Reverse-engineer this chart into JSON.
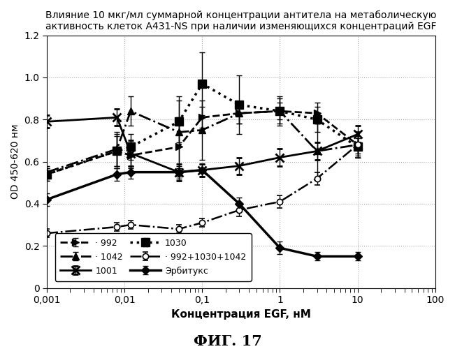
{
  "title_line1": "Влияние 10 мкг/мл суммарной концентрации антитела на метаболическую",
  "title_line2": "активность клеток A431-NS при наличии изменяющихся концентраций EGF",
  "xlabel": "Концентрация EGF, нМ",
  "ylabel": "OD 450-620 нм",
  "figcaption": "ФИГ. 17",
  "xlim": [
    0.001,
    100
  ],
  "ylim": [
    0,
    1.2
  ],
  "yticks": [
    0,
    0.2,
    0.4,
    0.6,
    0.8,
    1.0,
    1.2
  ],
  "xticks": [
    0.001,
    0.01,
    0.1,
    1,
    10,
    100
  ],
  "xtick_labels": [
    "0,001",
    "0,01",
    "0,1",
    "1",
    "10",
    "100"
  ],
  "series_992": {
    "x": [
      0.001,
      0.008,
      0.012,
      0.05,
      0.1,
      0.3,
      1.0,
      3.0,
      10.0
    ],
    "y": [
      0.54,
      0.65,
      0.63,
      0.67,
      0.81,
      0.83,
      0.84,
      0.83,
      0.68
    ],
    "yerr": [
      0.03,
      0.08,
      0.06,
      0.14,
      0.05,
      0.05,
      0.04,
      0.05,
      0.04
    ],
    "label": "· 992"
  },
  "series_1030": {
    "x": [
      0.001,
      0.008,
      0.012,
      0.05,
      0.1,
      0.3,
      1.0,
      3.0,
      10.0
    ],
    "y": [
      0.54,
      0.65,
      0.67,
      0.79,
      0.97,
      0.87,
      0.84,
      0.8,
      0.67
    ],
    "yerr": [
      0.03,
      0.07,
      0.06,
      0.1,
      0.15,
      0.14,
      0.07,
      0.06,
      0.04
    ],
    "label": "1030"
  },
  "series_1042": {
    "x": [
      0.001,
      0.008,
      0.012,
      0.05,
      0.1,
      0.3,
      1.0,
      3.0,
      10.0
    ],
    "y": [
      0.55,
      0.66,
      0.84,
      0.74,
      0.75,
      0.83,
      0.84,
      0.65,
      0.68
    ],
    "yerr": [
      0.03,
      0.08,
      0.07,
      0.17,
      0.14,
      0.05,
      0.06,
      0.13,
      0.06
    ],
    "label": "· 1042"
  },
  "series_mix": {
    "x": [
      0.001,
      0.008,
      0.012,
      0.05,
      0.1,
      0.3,
      1.0,
      3.0,
      10.0
    ],
    "y": [
      0.26,
      0.29,
      0.3,
      0.28,
      0.31,
      0.37,
      0.41,
      0.52,
      0.68
    ],
    "yerr": [
      0.02,
      0.02,
      0.02,
      0.02,
      0.02,
      0.03,
      0.03,
      0.03,
      0.06
    ],
    "label": "· 992+1030+1042"
  },
  "series_1001": {
    "x": [
      0.001,
      0.008,
      0.012,
      0.05,
      0.1,
      0.3,
      1.0,
      3.0,
      10.0
    ],
    "y": [
      0.79,
      0.81,
      0.64,
      0.55,
      0.56,
      0.58,
      0.62,
      0.65,
      0.73
    ],
    "yerr": [
      0.03,
      0.04,
      0.06,
      0.04,
      0.03,
      0.04,
      0.04,
      0.04,
      0.04
    ],
    "label": "1001"
  },
  "series_erbitux": {
    "x": [
      0.001,
      0.008,
      0.012,
      0.05,
      0.1,
      0.3,
      1.0,
      3.0,
      10.0
    ],
    "y": [
      0.42,
      0.54,
      0.55,
      0.55,
      0.56,
      0.4,
      0.19,
      0.15,
      0.15
    ],
    "yerr": [
      0.03,
      0.03,
      0.03,
      0.03,
      0.03,
      0.03,
      0.03,
      0.02,
      0.02
    ],
    "label": "Эрбитукс"
  }
}
